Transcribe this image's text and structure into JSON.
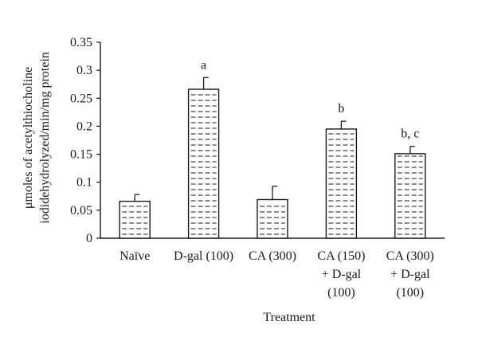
{
  "chart_data": {
    "type": "bar",
    "title": "",
    "xlabel": "Treatment",
    "ylabel_line1": "μmoles of acetylthiocholine",
    "ylabel_line2": "iodidehydrolyzed/min/mg protein",
    "ylim": [
      0,
      0.35
    ],
    "yticks": [
      "0",
      "0.05",
      "0.1",
      "0.15",
      "0.2",
      "0.25",
      "0.3",
      "0.35"
    ],
    "ytick_values": [
      0,
      0.05,
      0.1,
      0.15,
      0.2,
      0.25,
      0.3,
      0.35
    ],
    "grid": false,
    "legend": "none",
    "bar_pattern": "horizontal-dashes",
    "bar_color": "#ffffff",
    "line_color": "#1a1a1a",
    "categories": [
      [
        "Naïve"
      ],
      [
        "D-gal (100)"
      ],
      [
        "CA (300)"
      ],
      [
        "CA (150)",
        "+ D-gal",
        "(100)"
      ],
      [
        "CA (300)",
        "+ D-gal",
        "(100)"
      ]
    ],
    "values": [
      0.066,
      0.266,
      0.069,
      0.195,
      0.151
    ],
    "errors": [
      0.012,
      0.021,
      0.024,
      0.014,
      0.013
    ],
    "significance": [
      "",
      "a",
      "",
      "b",
      "b, c"
    ]
  }
}
